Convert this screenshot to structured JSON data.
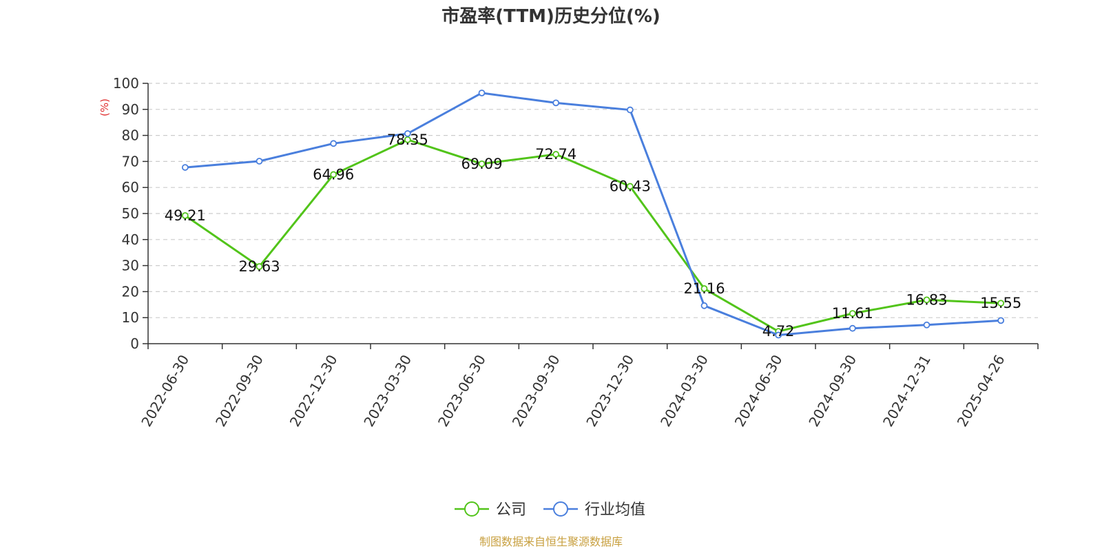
{
  "chart_data": {
    "type": "line",
    "title": "市盈率(TTM)历史分位(%)",
    "ylabel": "(%)",
    "ylim": [
      0,
      100
    ],
    "yticks": [
      0,
      10,
      20,
      30,
      40,
      50,
      60,
      70,
      80,
      90,
      100
    ],
    "grid": true,
    "legend_position": "bottom-center",
    "categories": [
      "2022-06-30",
      "2022-09-30",
      "2022-12-30",
      "2023-03-30",
      "2023-06-30",
      "2023-09-30",
      "2023-12-30",
      "2024-03-30",
      "2024-06-30",
      "2024-09-30",
      "2024-12-31",
      "2025-04-26"
    ],
    "series": [
      {
        "name": "公司",
        "color": "#52c41a",
        "values": [
          49.21,
          29.63,
          64.96,
          78.35,
          69.09,
          72.74,
          60.43,
          21.16,
          4.72,
          11.61,
          16.83,
          15.55
        ],
        "labels": [
          "49.21",
          "29.63",
          "64.96",
          "78.35",
          "69.09",
          "72.74",
          "60.43",
          "21.16",
          "4.72",
          "11.61",
          "16.83",
          "15.55"
        ]
      },
      {
        "name": "行业均值",
        "color": "#4a7fdd",
        "values": [
          67.7,
          70.1,
          76.9,
          80.7,
          96.3,
          92.5,
          89.8,
          14.6,
          3.3,
          5.9,
          7.2,
          8.9
        ]
      }
    ],
    "ylabel_color": "#e03030",
    "source": "制图数据来自恒生聚源数据库",
    "source_color": "#c8a040"
  }
}
